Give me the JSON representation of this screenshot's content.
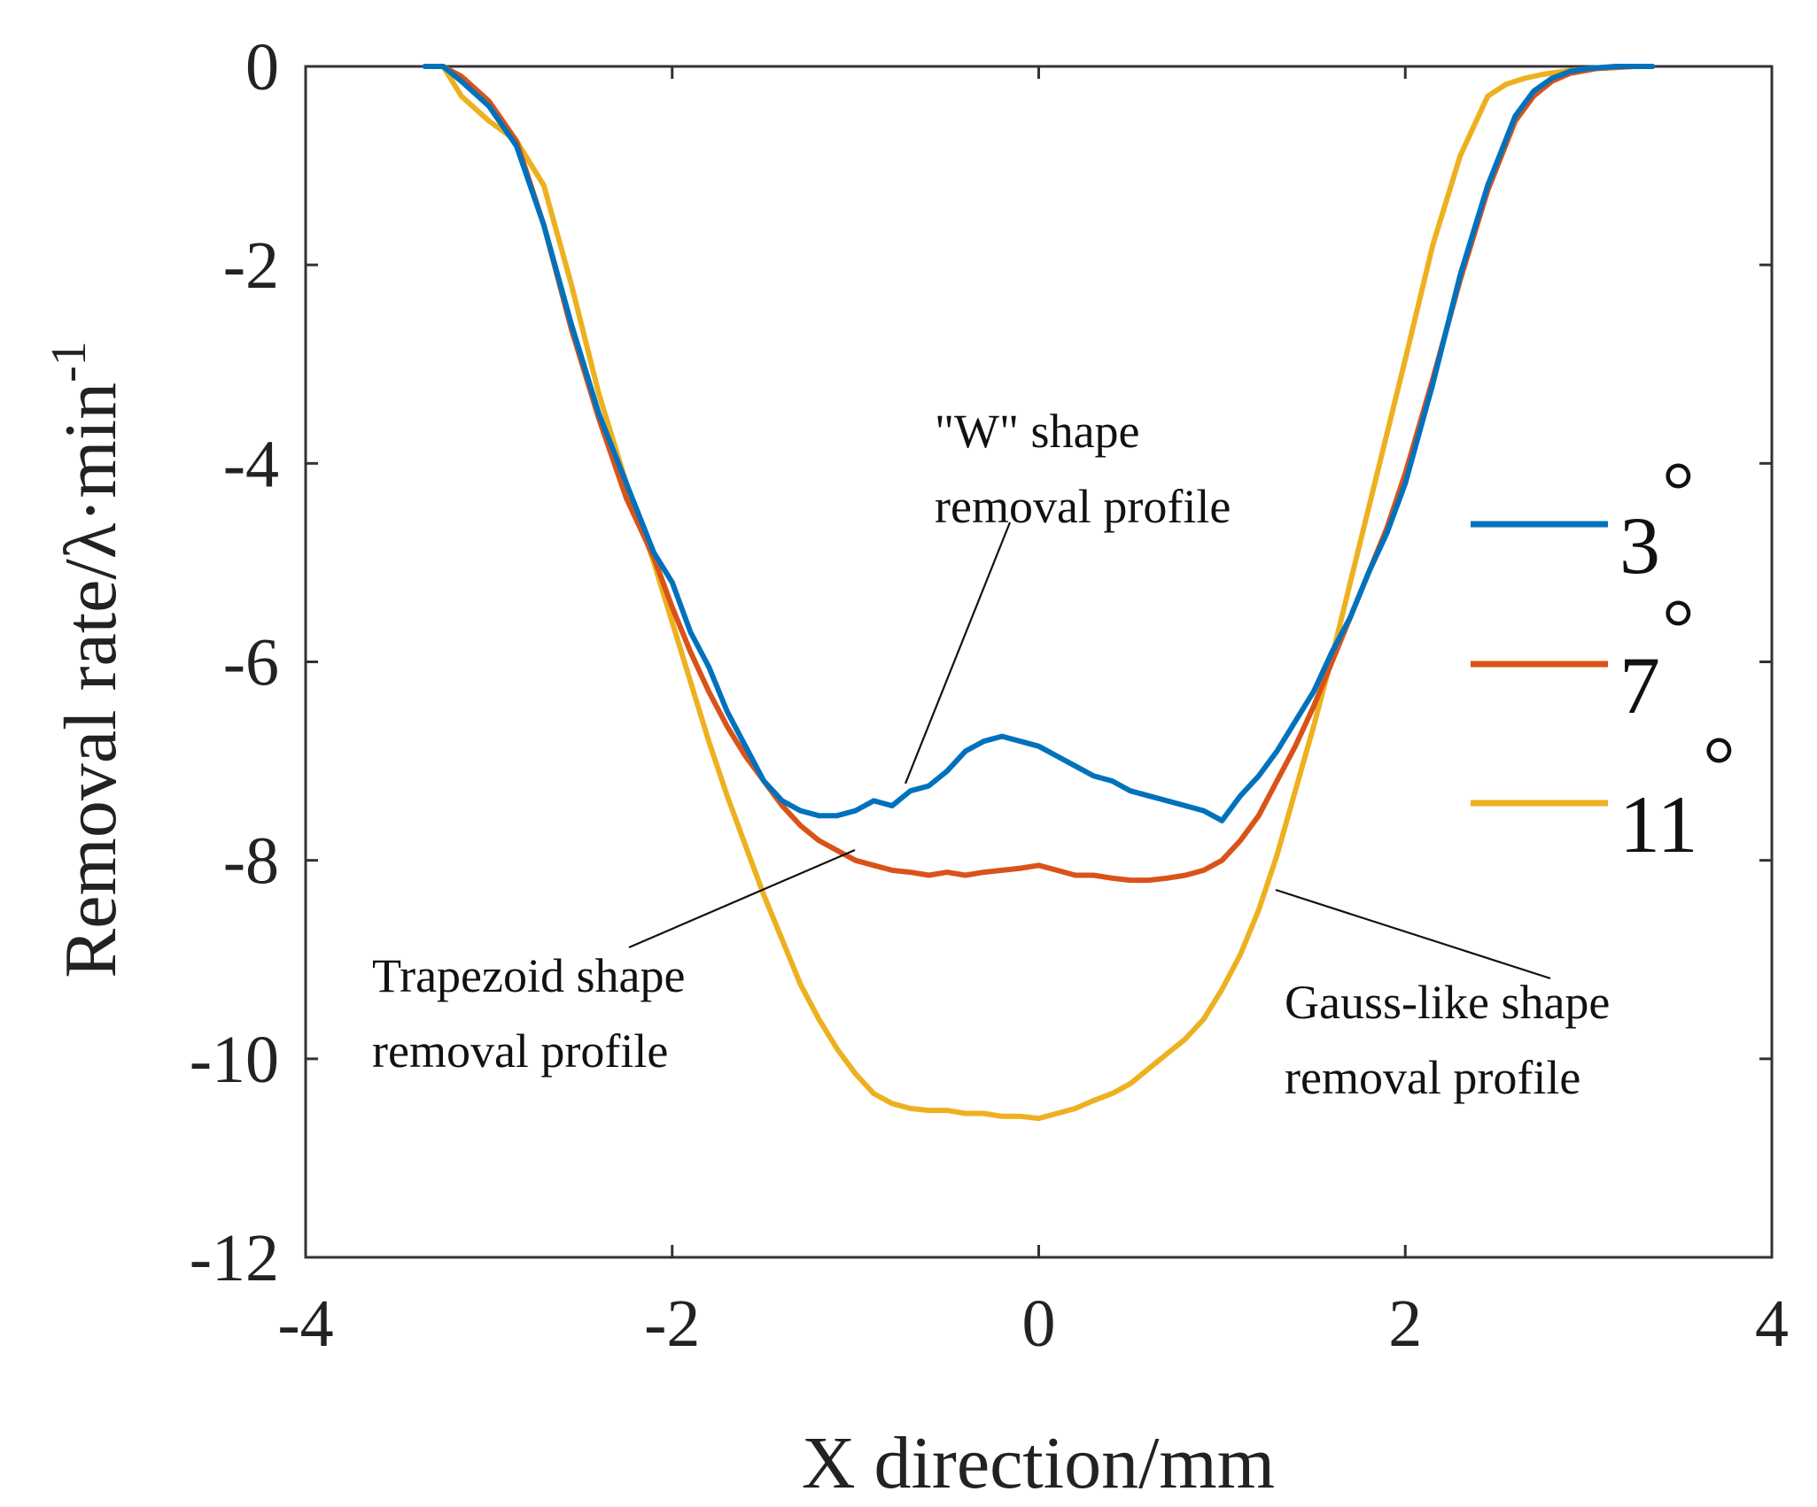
{
  "chart_data": {
    "type": "line",
    "title": "",
    "xlabel": "X direction/mm",
    "ylabel": "Removal rate/λ·min",
    "ylabel_superscript": "-1",
    "xlim": [
      -4,
      4
    ],
    "ylim": [
      -12,
      0
    ],
    "xticks": [
      -4,
      -2,
      0,
      2,
      4
    ],
    "xtick_labels": [
      "-4",
      "-2",
      "0",
      "2",
      "4"
    ],
    "yticks": [
      0,
      -2,
      -4,
      -6,
      -8,
      -10,
      -12
    ],
    "ytick_labels": [
      "0",
      "-2",
      "-4",
      "-6",
      "-8",
      "-10",
      "-12"
    ],
    "grid": false,
    "legend_position": "right",
    "series": [
      {
        "name": "3°",
        "number": "3",
        "degree": "°",
        "color": "#0072BD",
        "x": [
          -3.35,
          -3.25,
          -3.15,
          -3.0,
          -2.85,
          -2.7,
          -2.55,
          -2.4,
          -2.25,
          -2.1,
          -2.0,
          -1.9,
          -1.8,
          -1.7,
          -1.6,
          -1.5,
          -1.4,
          -1.3,
          -1.2,
          -1.1,
          -1.0,
          -0.9,
          -0.8,
          -0.7,
          -0.6,
          -0.5,
          -0.4,
          -0.3,
          -0.2,
          -0.1,
          0.0,
          0.1,
          0.2,
          0.3,
          0.4,
          0.5,
          0.6,
          0.7,
          0.8,
          0.9,
          1.0,
          1.1,
          1.2,
          1.3,
          1.4,
          1.5,
          1.6,
          1.7,
          1.8,
          1.9,
          2.0,
          2.15,
          2.3,
          2.45,
          2.6,
          2.7,
          2.8,
          2.9,
          3.0,
          3.15,
          3.35
        ],
        "y": [
          0,
          0,
          -0.15,
          -0.4,
          -0.8,
          -1.6,
          -2.6,
          -3.5,
          -4.2,
          -4.9,
          -5.2,
          -5.7,
          -6.05,
          -6.5,
          -6.85,
          -7.2,
          -7.4,
          -7.5,
          -7.55,
          -7.55,
          -7.5,
          -7.4,
          -7.45,
          -7.3,
          -7.25,
          -7.1,
          -6.9,
          -6.8,
          -6.75,
          -6.8,
          -6.85,
          -6.95,
          -7.05,
          -7.15,
          -7.2,
          -7.3,
          -7.35,
          -7.4,
          -7.45,
          -7.5,
          -7.6,
          -7.35,
          -7.15,
          -6.9,
          -6.6,
          -6.3,
          -5.9,
          -5.55,
          -5.1,
          -4.7,
          -4.2,
          -3.2,
          -2.1,
          -1.2,
          -0.5,
          -0.25,
          -0.12,
          -0.05,
          -0.02,
          0,
          0
        ]
      },
      {
        "name": "7°",
        "number": "7",
        "degree": "°",
        "color": "#D95319",
        "x": [
          -3.25,
          -3.15,
          -3.0,
          -2.85,
          -2.7,
          -2.55,
          -2.4,
          -2.25,
          -2.1,
          -2.0,
          -1.9,
          -1.8,
          -1.7,
          -1.6,
          -1.5,
          -1.4,
          -1.3,
          -1.2,
          -1.1,
          -1.0,
          -0.9,
          -0.8,
          -0.7,
          -0.6,
          -0.5,
          -0.4,
          -0.3,
          -0.2,
          -0.1,
          0.0,
          0.1,
          0.2,
          0.3,
          0.4,
          0.5,
          0.6,
          0.7,
          0.8,
          0.9,
          1.0,
          1.1,
          1.2,
          1.3,
          1.4,
          1.5,
          1.6,
          1.7,
          1.8,
          1.9,
          2.0,
          2.15,
          2.3,
          2.45,
          2.6,
          2.7,
          2.8,
          2.9,
          3.05,
          3.25
        ],
        "y": [
          0,
          -0.1,
          -0.35,
          -0.75,
          -1.6,
          -2.65,
          -3.55,
          -4.35,
          -4.95,
          -5.45,
          -5.9,
          -6.3,
          -6.65,
          -6.95,
          -7.2,
          -7.45,
          -7.65,
          -7.8,
          -7.9,
          -8.0,
          -8.05,
          -8.1,
          -8.12,
          -8.15,
          -8.12,
          -8.15,
          -8.12,
          -8.1,
          -8.08,
          -8.05,
          -8.1,
          -8.15,
          -8.15,
          -8.18,
          -8.2,
          -8.2,
          -8.18,
          -8.15,
          -8.1,
          -8.0,
          -7.8,
          -7.55,
          -7.2,
          -6.85,
          -6.45,
          -6.0,
          -5.55,
          -5.1,
          -4.65,
          -4.1,
          -3.15,
          -2.15,
          -1.25,
          -0.55,
          -0.3,
          -0.15,
          -0.07,
          -0.02,
          0
        ]
      },
      {
        "name": "11°",
        "number": "11",
        "degree": "°",
        "color": "#EDB120",
        "x": [
          -3.25,
          -3.15,
          -3.0,
          -2.85,
          -2.7,
          -2.55,
          -2.4,
          -2.25,
          -2.1,
          -2.0,
          -1.9,
          -1.8,
          -1.7,
          -1.6,
          -1.5,
          -1.4,
          -1.3,
          -1.2,
          -1.1,
          -1.0,
          -0.9,
          -0.8,
          -0.7,
          -0.6,
          -0.5,
          -0.4,
          -0.3,
          -0.2,
          -0.1,
          0.0,
          0.1,
          0.2,
          0.3,
          0.4,
          0.5,
          0.6,
          0.7,
          0.8,
          0.9,
          1.0,
          1.1,
          1.2,
          1.3,
          1.4,
          1.5,
          1.6,
          1.7,
          1.8,
          1.9,
          2.0,
          2.15,
          2.3,
          2.45,
          2.55,
          2.65,
          2.75,
          2.9,
          3.05,
          3.25
        ],
        "y": [
          0,
          -0.3,
          -0.55,
          -0.75,
          -1.2,
          -2.2,
          -3.3,
          -4.2,
          -5.0,
          -5.6,
          -6.2,
          -6.8,
          -7.35,
          -7.85,
          -8.35,
          -8.8,
          -9.25,
          -9.6,
          -9.9,
          -10.15,
          -10.35,
          -10.45,
          -10.5,
          -10.52,
          -10.52,
          -10.55,
          -10.55,
          -10.58,
          -10.58,
          -10.6,
          -10.55,
          -10.5,
          -10.42,
          -10.35,
          -10.25,
          -10.1,
          -9.95,
          -9.8,
          -9.6,
          -9.3,
          -8.95,
          -8.5,
          -7.95,
          -7.3,
          -6.65,
          -5.95,
          -5.2,
          -4.45,
          -3.7,
          -2.95,
          -1.8,
          -0.9,
          -0.3,
          -0.18,
          -0.12,
          -0.08,
          -0.04,
          -0.02,
          0
        ]
      }
    ],
    "annotations": [
      {
        "lines": [
          "\"W\" shape",
          "removal profile"
        ],
        "point_x": -0.75,
        "point_y": -7.45
      },
      {
        "lines": [
          "Trapezoid shape",
          "removal profile"
        ],
        "point_x": -0.95,
        "point_y": -7.95
      },
      {
        "lines": [
          "Gauss-like shape",
          "removal profile"
        ],
        "point_x": 1.3,
        "point_y": -8.3
      }
    ]
  }
}
